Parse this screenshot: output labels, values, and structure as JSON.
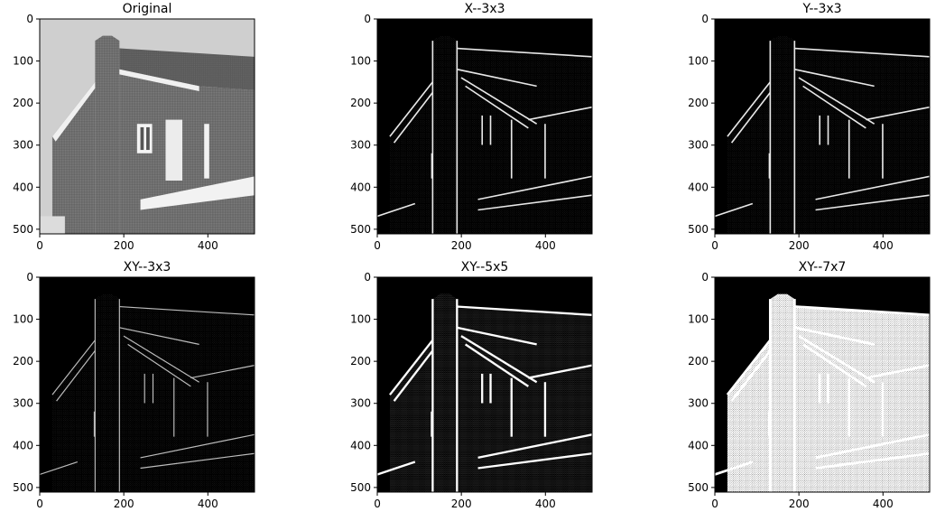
{
  "figure": {
    "background": "#ffffff"
  },
  "chart_data": [
    {
      "type": "image",
      "title": "Original",
      "xlim": [
        0,
        511
      ],
      "ylim": [
        511,
        0
      ],
      "xticks": [
        0,
        200,
        400
      ],
      "yticks": [
        0,
        100,
        200,
        300,
        400,
        500
      ],
      "content": "grayscale photo of a brick house with chimney and gable roof",
      "colormap": "gray"
    },
    {
      "type": "image",
      "title": "X--3x3",
      "xlim": [
        0,
        511
      ],
      "ylim": [
        511,
        0
      ],
      "xticks": [
        0,
        200,
        400
      ],
      "yticks": [
        0,
        100,
        200,
        300,
        400,
        500
      ],
      "content": "horizontal-gradient edge map (3x3 kernel), black background with white edges",
      "colormap": "gray"
    },
    {
      "type": "image",
      "title": "Y--3x3",
      "xlim": [
        0,
        511
      ],
      "ylim": [
        511,
        0
      ],
      "xticks": [
        0,
        200,
        400
      ],
      "yticks": [
        0,
        100,
        200,
        300,
        400,
        500
      ],
      "content": "vertical-gradient edge map (3x3 kernel), black background with white edges",
      "colormap": "gray"
    },
    {
      "type": "image",
      "title": "XY--3x3",
      "xlim": [
        0,
        511
      ],
      "ylim": [
        511,
        0
      ],
      "xticks": [
        0,
        200,
        400
      ],
      "yticks": [
        0,
        100,
        200,
        300,
        400,
        500
      ],
      "content": "combined XY edge map (3x3 kernel), sparse white edges on black",
      "colormap": "gray"
    },
    {
      "type": "image",
      "title": "XY--5x5",
      "xlim": [
        0,
        511
      ],
      "ylim": [
        511,
        0
      ],
      "xticks": [
        0,
        200,
        400
      ],
      "yticks": [
        0,
        100,
        200,
        300,
        400,
        500
      ],
      "content": "combined XY edge map (5x5 kernel), denser white edges on black",
      "colormap": "gray"
    },
    {
      "type": "image",
      "title": "XY--7x7",
      "xlim": [
        0,
        511
      ],
      "ylim": [
        511,
        0
      ],
      "xticks": [
        0,
        200,
        400
      ],
      "yticks": [
        0,
        100,
        200,
        300,
        400,
        500
      ],
      "content": "combined XY edge map (7x7 kernel), mostly white speckled house region on black",
      "colormap": "gray"
    }
  ]
}
